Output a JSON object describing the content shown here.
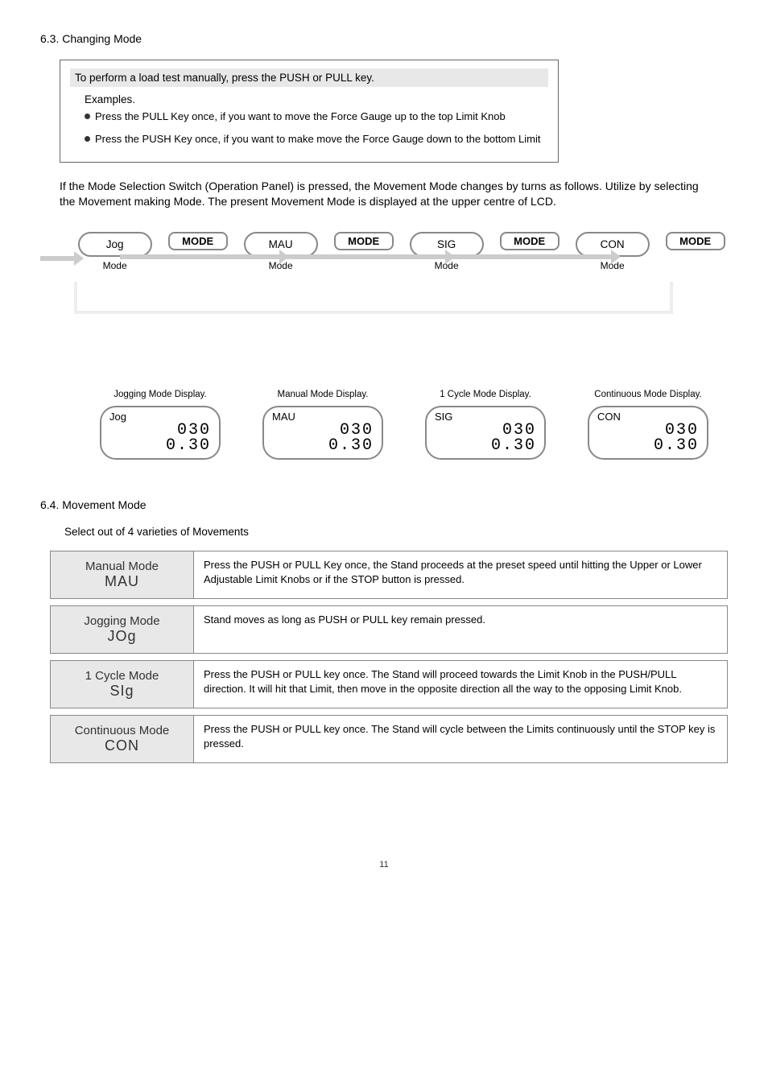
{
  "page_number": "11",
  "section63": {
    "heading": "6.3. Changing Mode",
    "note_banner": "To perform a load test manually, press the PUSH or PULL key.",
    "examples_label": "Examples.",
    "bullets": [
      "Press the PULL Key once, if you want to  move the Force Gauge up to the top Limit Knob",
      "Press the PUSH Key once, if you want to make move the Force Gauge down to the bottom Limit"
    ],
    "paragraph": "If the Mode Selection Switch (Operation Panel) is pressed, the Movement Mode changes by turns as follows. Utilize by selecting the Movement making Mode. The present Movement Mode is displayed at the upper centre of LCD.",
    "flow_modes": [
      {
        "name": "Jog",
        "sub": "Mode"
      },
      {
        "name": "MAU",
        "sub": "Mode"
      },
      {
        "name": "SIG",
        "sub": "Mode"
      },
      {
        "name": "CON",
        "sub": "Mode"
      }
    ],
    "mode_button_label": "MODE",
    "displays": [
      {
        "label": "Jogging Mode Display.",
        "top": "Jog"
      },
      {
        "label": "Manual Mode Display.",
        "top": "MAU"
      },
      {
        "label": "1 Cycle Mode Display.",
        "top": "SIG"
      },
      {
        "label": "Continuous Mode Display.",
        "top": "CON"
      }
    ],
    "seg_lines": "  030\n 0.30"
  },
  "section64": {
    "heading": "6.4. Movement Mode",
    "intro": "Select out of 4 varieties of Movements",
    "rows": [
      {
        "name_top": "Manual  Mode",
        "code": "MAU",
        "desc": "Press the PUSH or PULL Key once, the Stand proceeds at the preset speed until hitting the Upper or Lower Adjustable Limit Knobs or if the STOP button is pressed."
      },
      {
        "name_top": "Jogging  Mode",
        "code": "JOg",
        "desc": "Stand moves as long as PUSH or PULL key remain pressed."
      },
      {
        "name_top": "1 Cycle  Mode",
        "code": "SIg",
        "desc": "Press the PUSH or PULL key once.  The Stand will proceed towards the Limit Knob in the PUSH/PULL direction.  It will hit that Limit, then move in the opposite direction all the way to the opposing Limit Knob."
      },
      {
        "name_top": "Continuous Mode",
        "code": "CON",
        "desc": "Press the PUSH or PULL key once.  The Stand will cycle between the Limits continuously until the STOP key is pressed."
      }
    ]
  },
  "colors": {
    "bg": "#ffffff",
    "border": "#888888",
    "panel_bg": "#e8e8e8",
    "arrow": "#cccccc"
  }
}
